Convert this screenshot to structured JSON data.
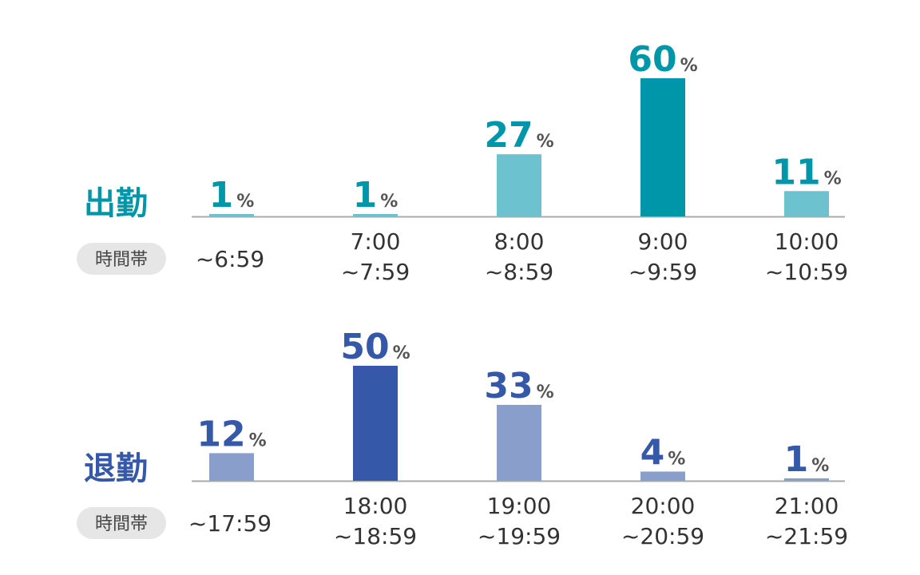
{
  "chart_data": [
    {
      "type": "bar",
      "title": "出勤",
      "xlabel": "時間帯",
      "unit": "%",
      "categories": [
        [
          "~6:59"
        ],
        [
          "7:00",
          "~7:59"
        ],
        [
          "8:00",
          "~8:59"
        ],
        [
          "9:00",
          "~9:59"
        ],
        [
          "10:00",
          "~10:59"
        ]
      ],
      "values": [
        1,
        1,
        27,
        60,
        11
      ],
      "ylim": [
        0,
        60
      ],
      "grid": false,
      "colors": {
        "title": "#0096AA",
        "value_text": "#0096AA",
        "bar": "#6CC3CF",
        "bar_highlight": "#0096AA",
        "highlight_index": 3
      }
    },
    {
      "type": "bar",
      "title": "退勤",
      "xlabel": "時間帯",
      "unit": "%",
      "categories": [
        [
          "~17:59"
        ],
        [
          "18:00",
          "~18:59"
        ],
        [
          "19:00",
          "~19:59"
        ],
        [
          "20:00",
          "~20:59"
        ],
        [
          "21:00",
          "~21:59"
        ]
      ],
      "values": [
        12,
        50,
        33,
        4,
        1
      ],
      "ylim": [
        0,
        50
      ],
      "grid": false,
      "colors": {
        "title": "#3558A8",
        "value_text": "#3558A8",
        "bar": "#8A9ECB",
        "bar_highlight": "#3558A8",
        "highlight_index": 1
      }
    }
  ],
  "style": {
    "axis_color": "#AAAAAA",
    "pill_bg": "#E6E6E6",
    "tick_color": "#333333"
  }
}
